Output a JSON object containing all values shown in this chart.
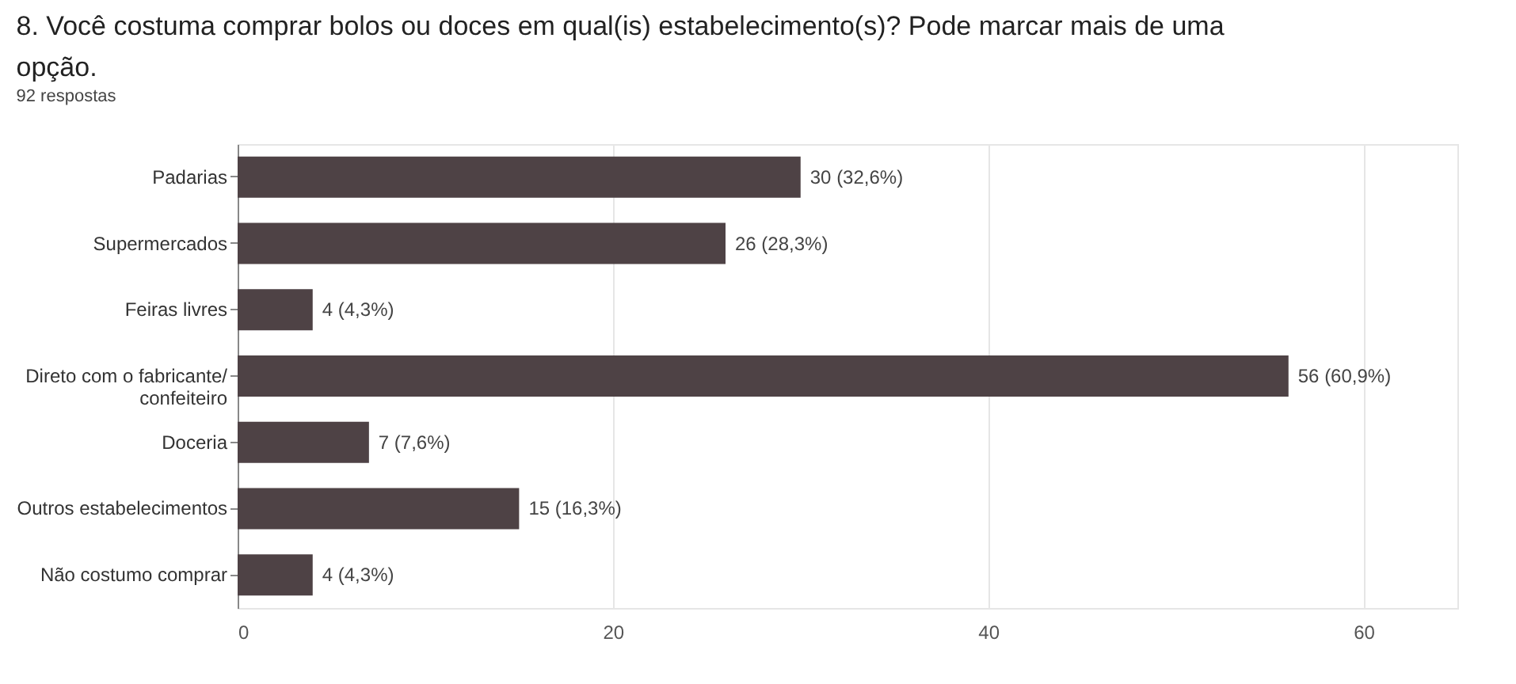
{
  "chart_data": {
    "type": "bar",
    "orientation": "horizontal",
    "title": "8. Você costuma comprar bolos ou doces em qual(is) estabelecimento(s)? Pode marcar mais de uma opção.",
    "subtitle": "92 respostas",
    "categories": [
      "Padarias",
      "Supermercados",
      "Feiras livres",
      "Direto com o fabricante/ confeiteiro",
      "Doceria",
      "Outros estabelecimentos",
      "Não costumo comprar"
    ],
    "values": [
      30,
      26,
      4,
      56,
      7,
      15,
      4
    ],
    "value_labels": [
      "30 (32,6%)",
      "26 (28,3%)",
      "4 (4,3%)",
      "56 (60,9%)",
      "7 (7,6%)",
      "15 (16,3%)",
      "4 (4,3%)"
    ],
    "color": "#4e4245",
    "xlim": [
      0,
      65
    ],
    "xticks": [
      0,
      20,
      40,
      60
    ],
    "grid": "x"
  }
}
